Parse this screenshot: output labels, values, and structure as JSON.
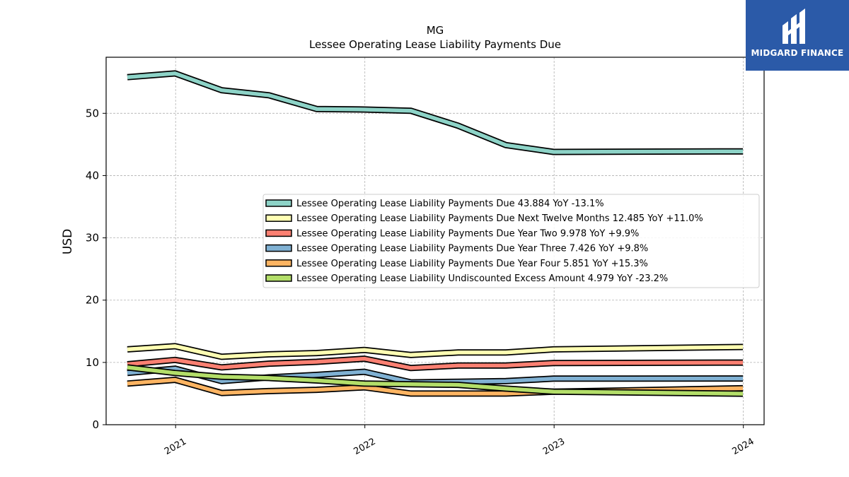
{
  "logo": {
    "text": "MIDGARD FINANCE",
    "icon": "midgard-logo-mark",
    "color": "#2b5aa8"
  },
  "chart_data": {
    "type": "line",
    "title": "MG",
    "subtitle": "Lessee Operating Lease Liability Payments Due",
    "xlabel": "",
    "ylabel": "USD",
    "ylim": [
      0,
      59
    ],
    "yticks": [
      0,
      10,
      20,
      30,
      40,
      50
    ],
    "xticks": [
      {
        "label": "2021",
        "date": "2021-01-01"
      },
      {
        "label": "2022",
        "date": "2022-01-01"
      },
      {
        "label": "2023",
        "date": "2023-01-01"
      },
      {
        "label": "2024",
        "date": "2024-01-01"
      }
    ],
    "xlim": [
      "2020-08-20",
      "2024-02-10"
    ],
    "grid": true,
    "legend_position": "center-right",
    "x": [
      "2020-09-30",
      "2020-12-31",
      "2021-03-31",
      "2021-06-30",
      "2021-09-30",
      "2021-12-31",
      "2022-03-31",
      "2022-06-30",
      "2022-09-30",
      "2022-12-31",
      "2023-12-31"
    ],
    "series": [
      {
        "name": "Lessee Operating Lease Liability Payments Due  43.884 YoY -13.1%",
        "color": "#8dd3c7",
        "values": [
          55.8,
          56.4,
          53.7,
          52.9,
          50.7,
          50.6,
          50.4,
          48.0,
          44.9,
          43.8,
          43.884
        ]
      },
      {
        "name": "Lessee Operating Lease Liability Payments Due Next Twelve Months  12.485 YoY +11.0%",
        "color": "#ffffb3",
        "values": [
          12.1,
          12.6,
          10.9,
          11.3,
          11.5,
          12.0,
          11.2,
          11.6,
          11.6,
          12.1,
          12.485
        ]
      },
      {
        "name": "Lessee Operating Lease Liability Payments Due Year Two  9.978 YoY +9.9%",
        "color": "#fb8072",
        "values": [
          9.7,
          10.4,
          9.2,
          9.8,
          10.1,
          10.6,
          9.1,
          9.5,
          9.5,
          9.9,
          9.978
        ]
      },
      {
        "name": "Lessee Operating Lease Liability Payments Due Year Three  7.426 YoY +9.8%",
        "color": "#80b1d3",
        "values": [
          8.3,
          9.0,
          7.0,
          7.6,
          8.0,
          8.5,
          6.8,
          6.9,
          7.0,
          7.4,
          7.426
        ]
      },
      {
        "name": "Lessee Operating Lease Liability Payments Due Year Four  5.851 YoY +15.3%",
        "color": "#fdb462",
        "values": [
          6.6,
          7.2,
          5.1,
          5.4,
          5.6,
          6.0,
          5.0,
          5.0,
          5.0,
          5.3,
          5.851
        ]
      },
      {
        "name": "Lessee Operating Lease Liability Undiscounted Excess Amount  4.979 YoY -23.2%",
        "color": "#b3de69",
        "values": [
          9.2,
          8.3,
          7.7,
          7.5,
          7.1,
          6.6,
          6.5,
          6.4,
          5.8,
          5.3,
          4.979
        ]
      }
    ]
  }
}
